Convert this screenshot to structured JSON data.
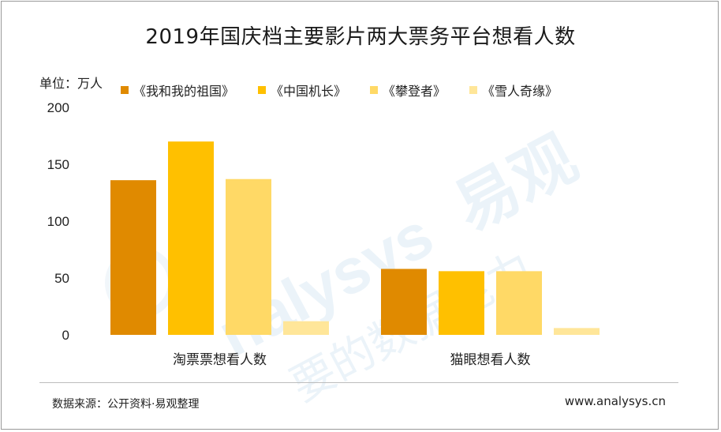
{
  "title": "2019年国庆档主要影片两大票务平台想看人数",
  "unit_label": "单位：万人",
  "source": "数据来源：公开资料·易观整理",
  "website": "www.analysys.cn",
  "watermark": {
    "brand": "analysys 易观",
    "slogan": "要的数据能力"
  },
  "chart_data": {
    "type": "bar",
    "title": "2019年国庆档主要影片两大票务平台想看人数",
    "ylabel": "单位：万人",
    "xlabel": "",
    "ylim": [
      0,
      200
    ],
    "yticks": [
      0,
      50,
      100,
      150,
      200
    ],
    "grid": false,
    "legend_position": "top",
    "categories": [
      "淘票票想看人数",
      "猫眼想看人数"
    ],
    "series": [
      {
        "name": "《我和我的祖国》",
        "color": "#E08A00",
        "values": [
          136,
          58
        ]
      },
      {
        "name": "《中国机长》",
        "color": "#FFC000",
        "values": [
          170,
          56
        ]
      },
      {
        "name": "《攀登者》",
        "color": "#FFD966",
        "values": [
          137,
          56
        ]
      },
      {
        "name": "《雪人奇缘》",
        "color": "#FFE699",
        "values": [
          12,
          6
        ]
      }
    ]
  }
}
